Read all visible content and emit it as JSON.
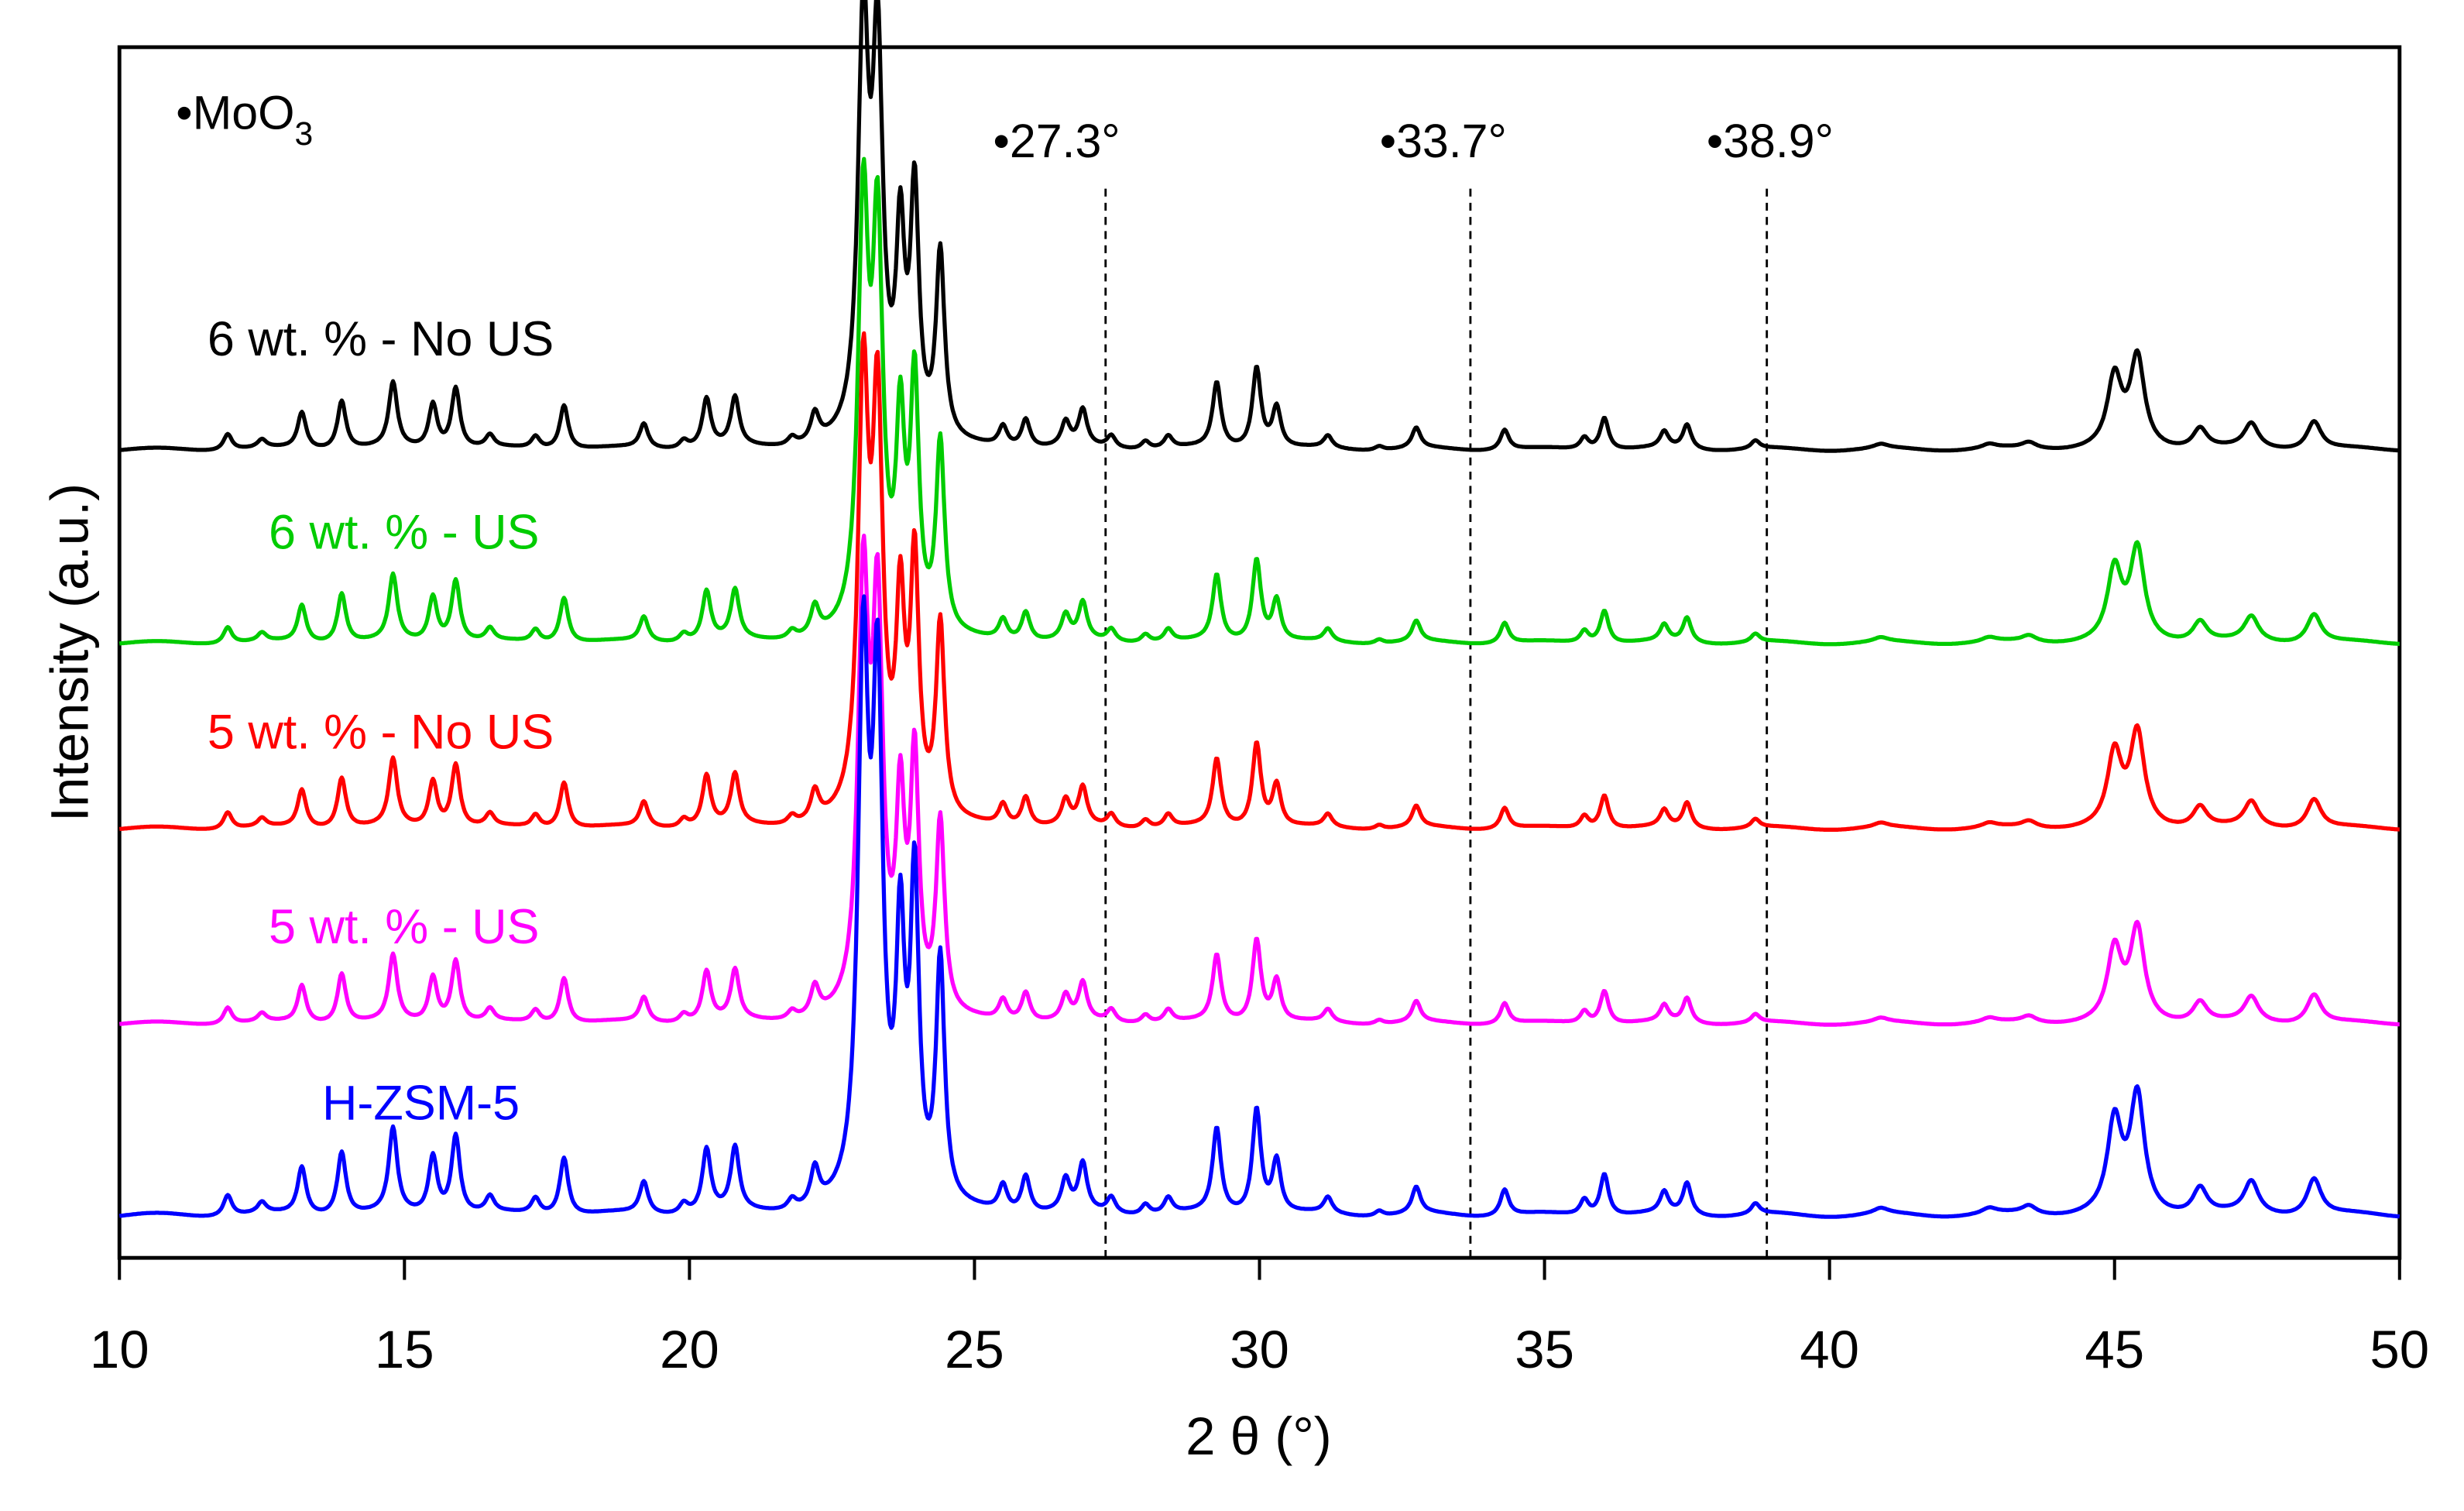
{
  "chart_data": {
    "type": "line",
    "title": "",
    "xlabel": "2 θ (°)",
    "ylabel": "Intensity (a.u.)",
    "xlim": [
      10,
      50
    ],
    "x_ticks": [
      "10",
      "15",
      "20",
      "25",
      "30",
      "35",
      "40",
      "45",
      "50"
    ],
    "y_ticks": [],
    "grid": false,
    "legend_position": "inline labels above each trace",
    "annotations": {
      "moo3_marker": "•MoO",
      "moo3_subscript": "3",
      "reference_lines": [
        {
          "x": 27.3,
          "label": "•27.3°"
        },
        {
          "x": 33.7,
          "label": "•33.7°"
        },
        {
          "x": 38.9,
          "label": "•38.9°"
        }
      ]
    },
    "series": [
      {
        "name": "6 wt. % - No US",
        "color": "#000000",
        "offset_order": 5
      },
      {
        "name": "6 wt. % - US",
        "color": "#00cc00",
        "offset_order": 4
      },
      {
        "name": "5 wt. % - No US",
        "color": "#ff0000",
        "offset_order": 3
      },
      {
        "name": "5 wt. % - US",
        "color": "#ff00ff",
        "offset_order": 2
      },
      {
        "name": "H-ZSM-5",
        "color": "#0000ff",
        "offset_order": 1
      }
    ],
    "peaks_2theta_relative_intensity": [
      [
        11.9,
        0.04
      ],
      [
        12.5,
        0.02
      ],
      [
        13.2,
        0.09
      ],
      [
        13.9,
        0.12
      ],
      [
        14.8,
        0.16
      ],
      [
        15.5,
        0.11
      ],
      [
        15.9,
        0.15
      ],
      [
        16.5,
        0.03
      ],
      [
        17.3,
        0.03
      ],
      [
        17.8,
        0.11
      ],
      [
        19.2,
        0.06
      ],
      [
        19.9,
        0.02
      ],
      [
        20.3,
        0.12
      ],
      [
        20.8,
        0.12
      ],
      [
        21.8,
        0.02
      ],
      [
        22.2,
        0.07
      ],
      [
        23.05,
        1.0
      ],
      [
        23.3,
        0.93
      ],
      [
        23.7,
        0.48
      ],
      [
        23.95,
        0.6
      ],
      [
        24.4,
        0.46
      ],
      [
        25.5,
        0.05
      ],
      [
        25.9,
        0.07
      ],
      [
        26.6,
        0.06
      ],
      [
        26.9,
        0.09
      ],
      [
        27.4,
        0.03
      ],
      [
        28.0,
        0.02
      ],
      [
        28.4,
        0.03
      ],
      [
        29.25,
        0.16
      ],
      [
        29.95,
        0.2
      ],
      [
        30.3,
        0.1
      ],
      [
        31.2,
        0.03
      ],
      [
        32.1,
        0.01
      ],
      [
        32.75,
        0.05
      ],
      [
        34.3,
        0.05
      ],
      [
        35.7,
        0.03
      ],
      [
        36.05,
        0.08
      ],
      [
        37.1,
        0.04
      ],
      [
        37.5,
        0.06
      ],
      [
        38.7,
        0.02
      ],
      [
        40.9,
        0.01
      ],
      [
        42.8,
        0.01
      ],
      [
        43.5,
        0.015
      ],
      [
        45.0,
        0.17
      ],
      [
        45.4,
        0.22
      ],
      [
        46.5,
        0.05
      ],
      [
        47.4,
        0.06
      ],
      [
        48.5,
        0.07
      ]
    ]
  },
  "figure": {
    "x_tick_values": [
      10,
      15,
      20,
      25,
      30,
      35,
      40,
      45,
      50
    ]
  }
}
